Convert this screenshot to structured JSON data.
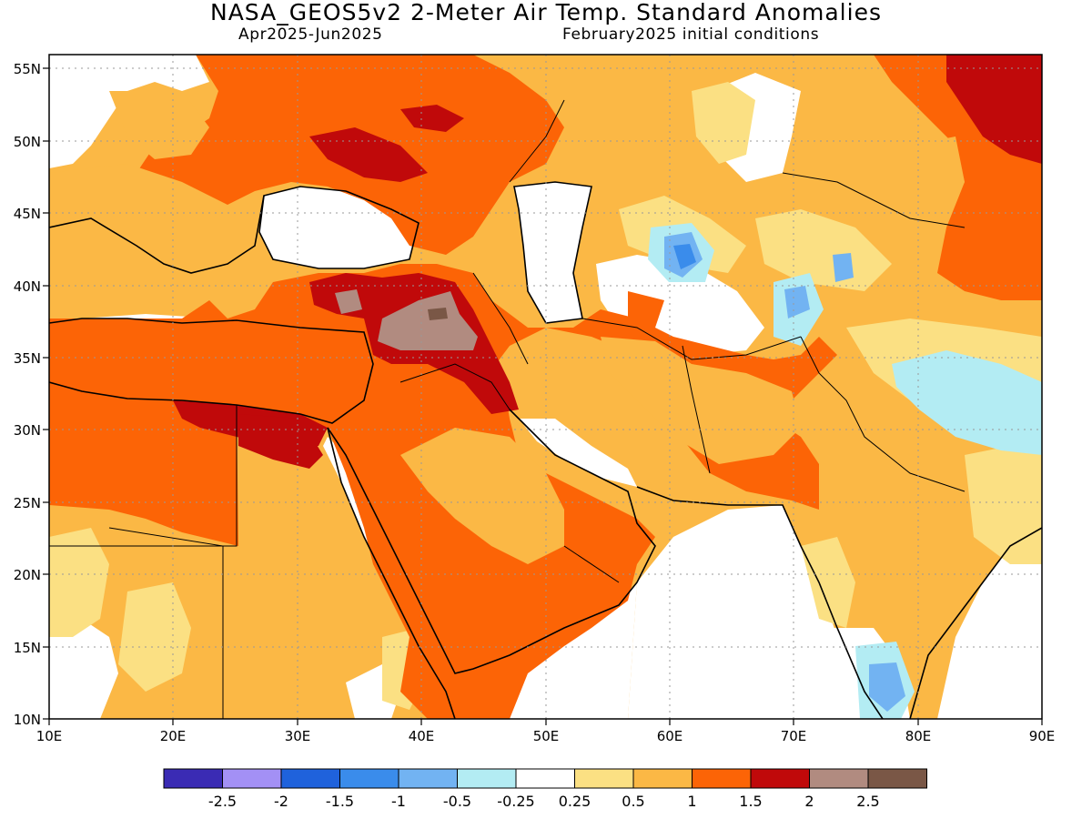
{
  "title": "NASA_GEOS5v2 2-Meter Air Temp. Standard Anomalies",
  "subtitle_left": "Apr2025-Jun2025",
  "subtitle_right": "February2025 initial conditions",
  "map": {
    "lon_range": [
      10,
      90
    ],
    "lat_range": [
      10,
      56
    ],
    "grid": "dotted",
    "lon_ticks": [
      "10E",
      "20E",
      "30E",
      "40E",
      "50E",
      "60E",
      "70E",
      "80E",
      "90E"
    ],
    "lat_ticks": [
      "10N",
      "15N",
      "20N",
      "25N",
      "30N",
      "35N",
      "40N",
      "45N",
      "50N",
      "55N"
    ]
  },
  "colorbar": {
    "colors": [
      "#3a2bb4",
      "#a390f5",
      "#1f62dc",
      "#3a8ceb",
      "#72b3f2",
      "#b3ecf3",
      "#ffffff",
      "#fbe083",
      "#fbb845",
      "#fc6406",
      "#c0090a",
      "#b18b80",
      "#7a5746"
    ],
    "labels": [
      "-2.5",
      "-2",
      "-1.5",
      "-1",
      "-0.5",
      "-0.25",
      "0.25",
      "0.5",
      "1",
      "1.5",
      "2",
      "2.5"
    ]
  },
  "colors": {
    "white": "#ffffff",
    "light_yellow": "#fbe083",
    "light_orange": "#fbb845",
    "orange": "#fc6406",
    "dark_red": "#c0090a",
    "brown": "#b18b80",
    "light_cyan": "#b3ecf3",
    "light_blue": "#72b3f2",
    "medium_blue": "#3a8ceb"
  }
}
